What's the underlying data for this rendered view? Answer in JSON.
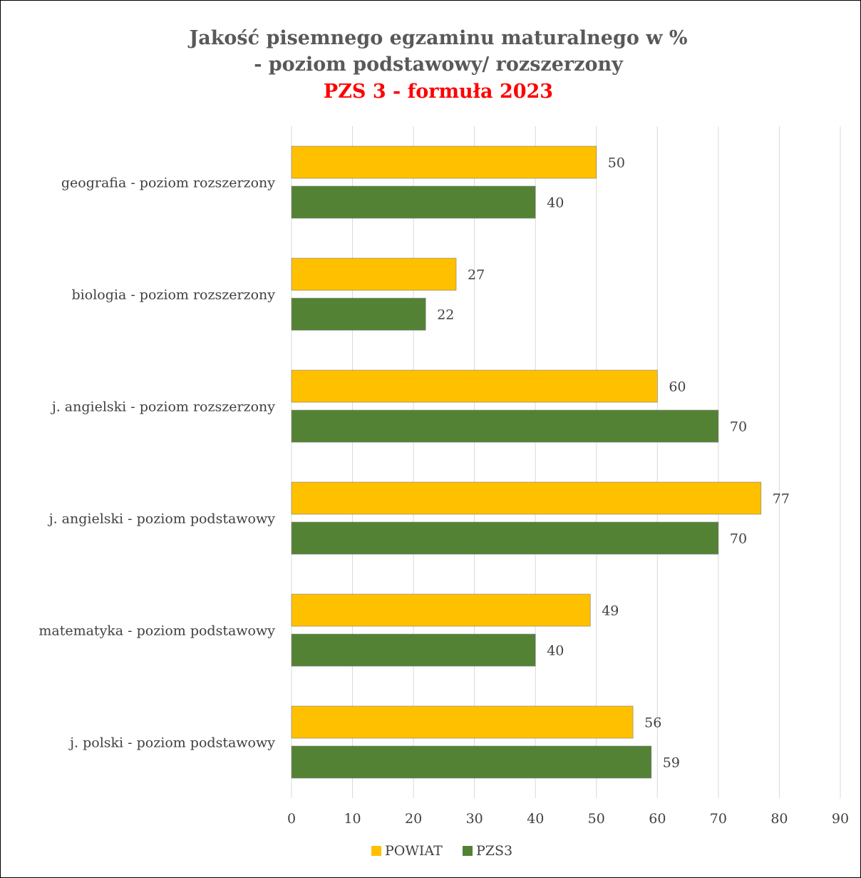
{
  "chart_data": {
    "type": "bar",
    "orientation": "horizontal",
    "title": [
      "Jakość pisemnego egzaminu maturalnego w %",
      "- poziom podstawowy/ rozszerzony",
      "PZS 3 - formuła 2023"
    ],
    "title_colors": [
      "#595959",
      "#595959",
      "#ff0000"
    ],
    "categories": [
      "geografia - poziom rozszerzony",
      "biologia - poziom rozszerzony",
      "j. angielski - poziom rozszerzony",
      "j. angielski - poziom podstawowy",
      "matematyka - poziom podstawowy",
      "j. polski - poziom podstawowy"
    ],
    "series": [
      {
        "name": "POWIAT",
        "color": "#ffc000",
        "values": [
          50,
          27,
          60,
          77,
          49,
          56
        ]
      },
      {
        "name": "PZS3",
        "color": "#548235",
        "values": [
          40,
          22,
          70,
          70,
          40,
          59
        ]
      }
    ],
    "xlim": [
      0,
      90
    ],
    "xticks": [
      0,
      10,
      20,
      30,
      40,
      50,
      60,
      70,
      80,
      90
    ],
    "grid": true,
    "legend_position": "bottom"
  }
}
